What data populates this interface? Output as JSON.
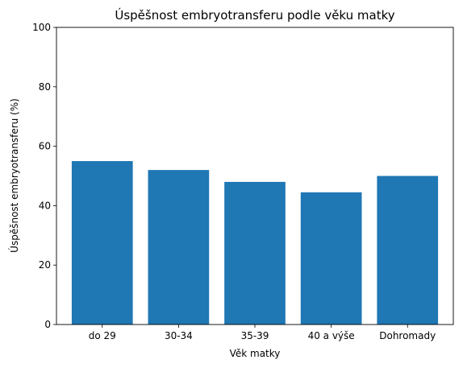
{
  "chart_data": {
    "type": "bar",
    "title": "Úspěšnost embryotransferu podle věku matky",
    "xlabel": "Věk matky",
    "ylabel": "Úspěšnost embryotransferu (%)",
    "categories": [
      "do 29",
      "30-34",
      "35-39",
      "40 a výše",
      "Dohromady"
    ],
    "values": [
      55,
      52,
      48,
      44.5,
      50
    ],
    "ylim": [
      0,
      100
    ],
    "yticks": [
      0,
      20,
      40,
      60,
      80,
      100
    ],
    "grid": false,
    "bar_color": "#1f77b4"
  }
}
